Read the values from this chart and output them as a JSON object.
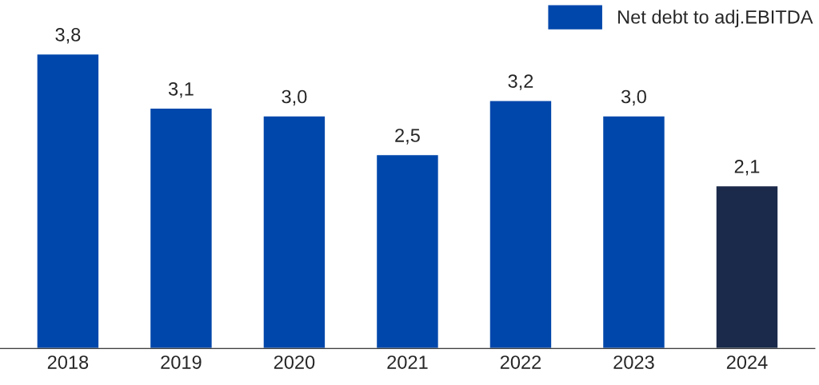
{
  "chart_data": {
    "type": "bar",
    "categories": [
      "2018",
      "2019",
      "2020",
      "2021",
      "2022",
      "2023",
      "2024"
    ],
    "series": [
      {
        "name": "Net debt to adj.EBITDA",
        "color": "#0047ab",
        "colors": [
          "#0047ab",
          "#0047ab",
          "#0047ab",
          "#0047ab",
          "#0047ab",
          "#0047ab",
          "#1b2a4a"
        ],
        "values": [
          3.8,
          3.1,
          3.0,
          2.5,
          3.2,
          3.0,
          2.1
        ],
        "value_labels": [
          "3,8",
          "3,1",
          "3,0",
          "2,5",
          "3,2",
          "3,0",
          "2,1"
        ]
      }
    ],
    "legend": "top right",
    "grid": false
  }
}
